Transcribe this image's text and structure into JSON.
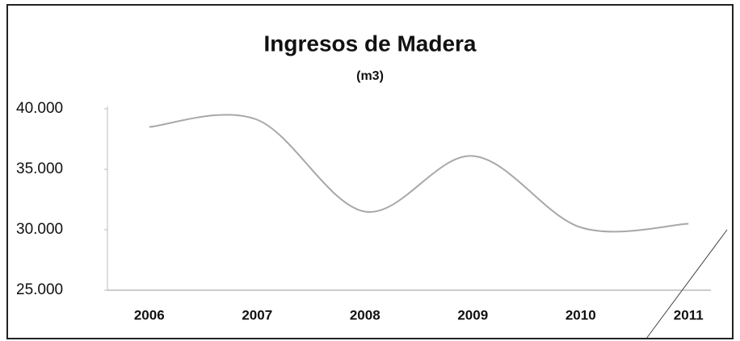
{
  "chart_data": {
    "type": "line",
    "title": "Ingresos de Madera",
    "subtitle": "(m3)",
    "categories": [
      "2006",
      "2007",
      "2008",
      "2009",
      "2010",
      "2011"
    ],
    "series": [
      {
        "name": "Ingresos de Madera",
        "color": "#a8a8a8",
        "values": [
          38500,
          39100,
          31500,
          36100,
          30200,
          30500
        ]
      }
    ],
    "ylim": [
      25000,
      40000
    ],
    "yticks": [
      {
        "value": 25000,
        "label": "25.000"
      },
      {
        "value": 30000,
        "label": "30.000"
      },
      {
        "value": 35000,
        "label": "35.000"
      },
      {
        "value": 40000,
        "label": "40.000"
      }
    ],
    "smooth": true
  }
}
